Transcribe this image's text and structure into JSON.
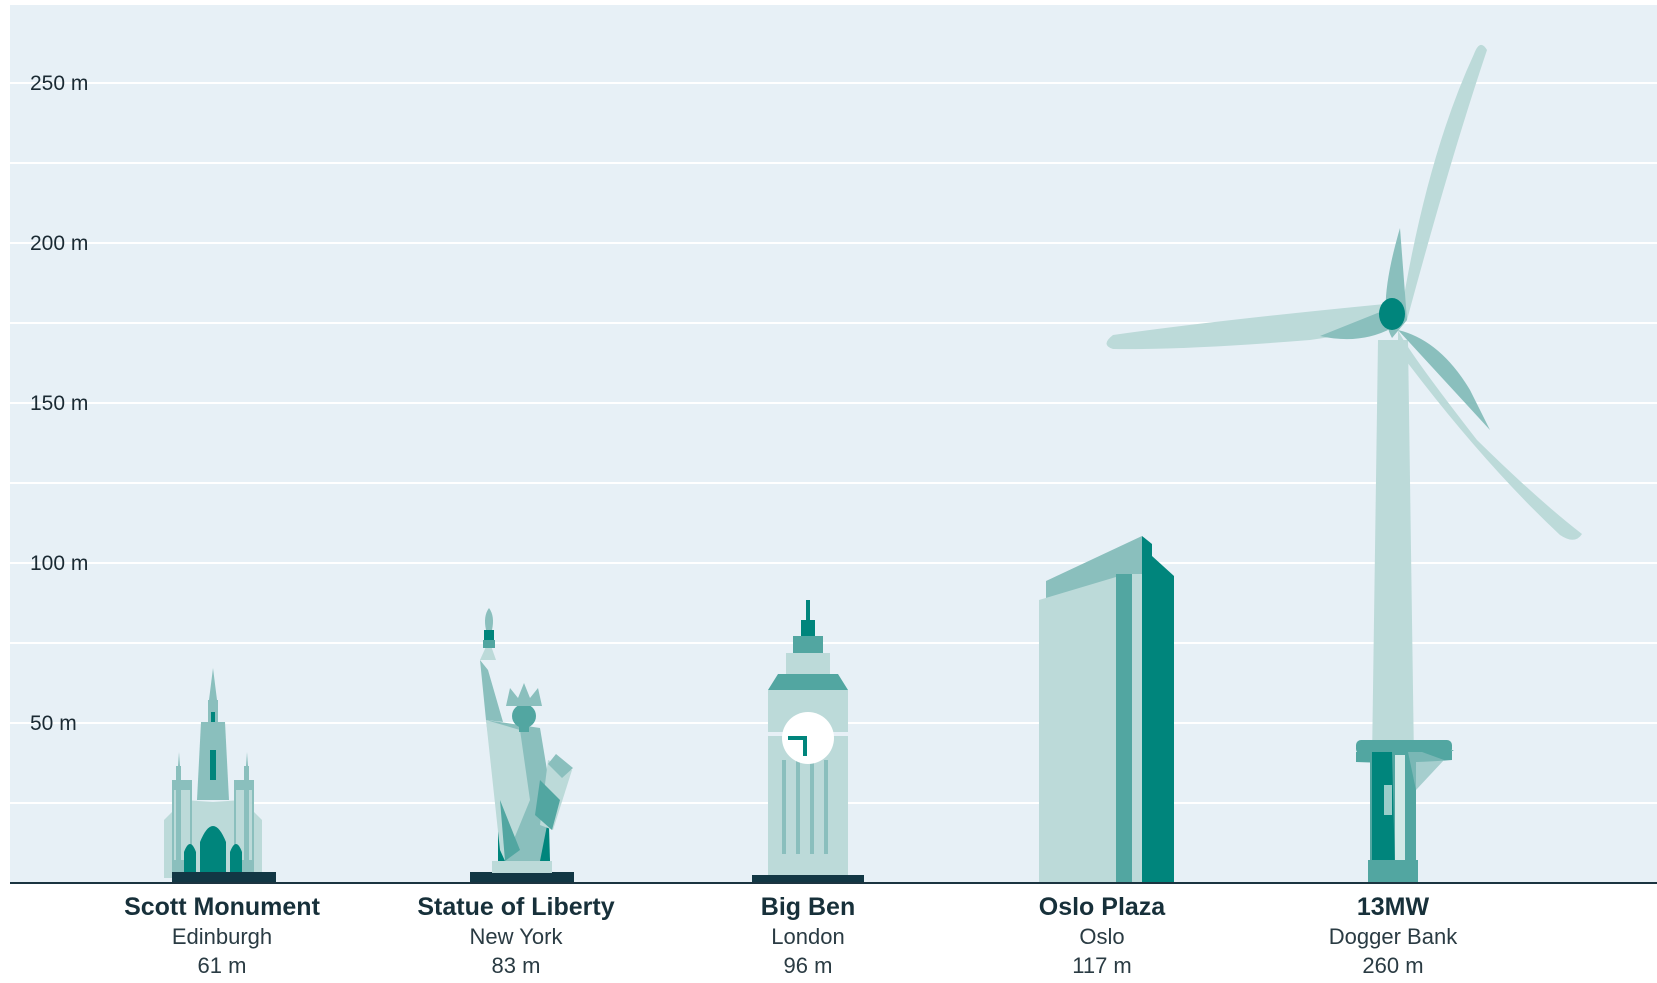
{
  "chart_data": {
    "type": "bar",
    "title": "",
    "xlabel": "",
    "ylabel": "",
    "ylim": [
      0,
      270
    ],
    "grid": true,
    "y_ticks": [
      {
        "value": 50,
        "label": "50 m"
      },
      {
        "value": 100,
        "label": "100 m"
      },
      {
        "value": 150,
        "label": "150 m"
      },
      {
        "value": 200,
        "label": "200 m"
      },
      {
        "value": 250,
        "label": "250 m"
      }
    ],
    "categories": [
      {
        "name": "Scott Monument",
        "location": "Edinburgh",
        "height_label": "61 m",
        "value": 61,
        "icon": "gothic-monument-icon"
      },
      {
        "name": "Statue of Liberty",
        "location": "New York",
        "height_label": "83 m",
        "value": 83,
        "icon": "statue-of-liberty-icon"
      },
      {
        "name": "Big Ben",
        "location": "London",
        "height_label": "96 m",
        "value": 96,
        "icon": "clock-tower-icon"
      },
      {
        "name": "Oslo Plaza",
        "location": "Oslo",
        "height_label": "117 m",
        "value": 117,
        "icon": "skyscraper-icon"
      },
      {
        "name": "13MW",
        "location": "Dogger Bank",
        "height_label": "260 m",
        "value": 260,
        "icon": "wind-turbine-icon"
      }
    ],
    "colors": {
      "background": "#e7f0f6",
      "grid": "#ffffff",
      "baseline": "#1b3440",
      "light": "#bcdad9",
      "mid": "#8abfbd",
      "dark": "#52a6a1",
      "deep": "#00857c",
      "base_plinth": "#123744"
    }
  }
}
